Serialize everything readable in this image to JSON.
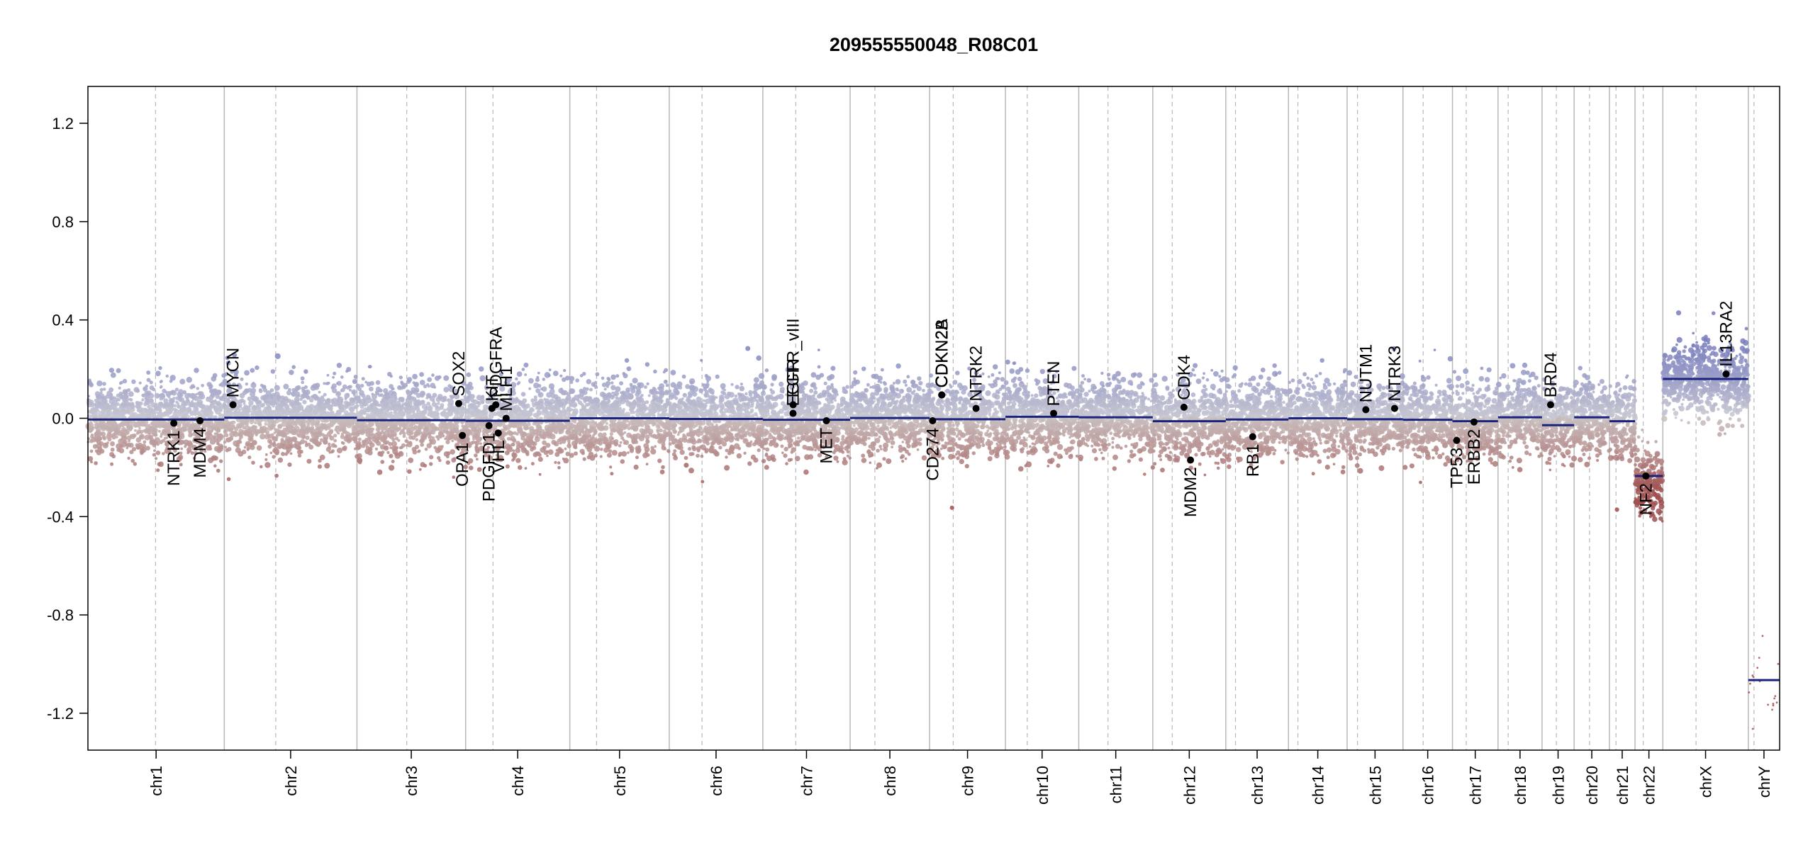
{
  "chart_data": {
    "type": "scatter",
    "title": "209555550048_R08C01",
    "xlabel": "",
    "ylabel": "",
    "ylim": [
      -1.35,
      1.35
    ],
    "y_ticks": [
      "1.2",
      "0.8",
      "0.4",
      "0.0",
      "-0.4",
      "-0.8",
      "-1.2"
    ],
    "chromosomes": [
      {
        "name": "chr1",
        "start": 0,
        "end": 248.9,
        "centromere": 123.4
      },
      {
        "name": "chr2",
        "start": 248.9,
        "end": 491.1,
        "centromere": 93.9
      },
      {
        "name": "chr3",
        "start": 491.1,
        "end": 689.4,
        "centromere": 90.9
      },
      {
        "name": "chr4",
        "start": 689.4,
        "end": 879.6,
        "centromere": 50.0
      },
      {
        "name": "chr5",
        "start": 879.6,
        "end": 1061.1,
        "centromere": 48.8
      },
      {
        "name": "chr6",
        "start": 1061.1,
        "end": 1231.9,
        "centromere": 59.8
      },
      {
        "name": "chr7",
        "start": 1231.9,
        "end": 1391.2,
        "centromere": 60.1
      },
      {
        "name": "chr8",
        "start": 1391.2,
        "end": 1536.3,
        "centromere": 45.2
      },
      {
        "name": "chr9",
        "start": 1536.3,
        "end": 1674.7,
        "centromere": 43.0
      },
      {
        "name": "chr10",
        "start": 1674.7,
        "end": 1808.5,
        "centromere": 39.8
      },
      {
        "name": "chr11",
        "start": 1808.5,
        "end": 1943.6,
        "centromere": 53.4
      },
      {
        "name": "chr12",
        "start": 1943.6,
        "end": 2076.9,
        "centromere": 35.5
      },
      {
        "name": "chr13",
        "start": 2076.9,
        "end": 2191.3,
        "centromere": 17.7
      },
      {
        "name": "chr14",
        "start": 2191.3,
        "end": 2298.3,
        "centromere": 17.2
      },
      {
        "name": "chr15",
        "start": 2298.3,
        "end": 2400.3,
        "centromere": 19.0
      },
      {
        "name": "chr16",
        "start": 2400.3,
        "end": 2490.6,
        "centromere": 36.8
      },
      {
        "name": "chr17",
        "start": 2490.6,
        "end": 2573.8,
        "centromere": 25.1
      },
      {
        "name": "chr18",
        "start": 2573.8,
        "end": 2654.1,
        "centromere": 18.5
      },
      {
        "name": "chr19",
        "start": 2654.1,
        "end": 2712.7,
        "centromere": 26.2
      },
      {
        "name": "chr20",
        "start": 2712.7,
        "end": 2777.1,
        "centromere": 28.1
      },
      {
        "name": "chr21",
        "start": 2777.1,
        "end": 2823.8,
        "centromere": 12.0
      },
      {
        "name": "chr22",
        "start": 2823.8,
        "end": 2874.6,
        "centromere": 15.0
      },
      {
        "name": "chrX",
        "start": 2874.6,
        "end": 3030.6,
        "centromere": 60.6
      },
      {
        "name": "chrY",
        "start": 3030.6,
        "end": 3087.8,
        "centromere": 10.4
      }
    ],
    "segments": [
      {
        "chr": "chr1",
        "x0": 0,
        "x1": 248.9,
        "y": -0.005
      },
      {
        "chr": "chr2",
        "x0": 248.9,
        "x1": 491.1,
        "y": 0.002
      },
      {
        "chr": "chr3",
        "x0": 491.1,
        "x1": 689.4,
        "y": -0.008
      },
      {
        "chr": "chr4",
        "x0": 689.4,
        "x1": 879.6,
        "y": -0.01
      },
      {
        "chr": "chr5",
        "x0": 879.6,
        "x1": 1061.1,
        "y": 0.0
      },
      {
        "chr": "chr6",
        "x0": 1061.1,
        "x1": 1231.9,
        "y": -0.003
      },
      {
        "chr": "chr7",
        "x0": 1231.9,
        "x1": 1391.2,
        "y": -0.006
      },
      {
        "chr": "chr8",
        "x0": 1391.2,
        "x1": 1536.3,
        "y": 0.001
      },
      {
        "chr": "chr9",
        "x0": 1536.3,
        "x1": 1674.7,
        "y": -0.004
      },
      {
        "chr": "chr10",
        "x0": 1674.7,
        "x1": 1808.5,
        "y": 0.006
      },
      {
        "chr": "chr11",
        "x0": 1808.5,
        "x1": 1943.6,
        "y": 0.004
      },
      {
        "chr": "chr12",
        "x0": 1943.6,
        "x1": 2076.9,
        "y": -0.012
      },
      {
        "chr": "chr13",
        "x0": 2076.9,
        "x1": 2191.3,
        "y": -0.005
      },
      {
        "chr": "chr14",
        "x0": 2191.3,
        "x1": 2298.3,
        "y": 0.0
      },
      {
        "chr": "chr15",
        "x0": 2298.3,
        "x1": 2400.3,
        "y": -0.004
      },
      {
        "chr": "chr16",
        "x0": 2400.3,
        "x1": 2490.6,
        "y": -0.006
      },
      {
        "chr": "chr17",
        "x0": 2490.6,
        "x1": 2573.8,
        "y": -0.012
      },
      {
        "chr": "chr18",
        "x0": 2573.8,
        "x1": 2654.1,
        "y": 0.004
      },
      {
        "chr": "chr19",
        "x0": 2654.1,
        "x1": 2712.7,
        "y": -0.028
      },
      {
        "chr": "chr20",
        "x0": 2712.7,
        "x1": 2777.1,
        "y": 0.004
      },
      {
        "chr": "chr21",
        "x0": 2777.1,
        "x1": 2823.8,
        "y": -0.012
      },
      {
        "chr": "chr22",
        "x0": 2823.8,
        "x1": 2874.6,
        "y": -0.235
      },
      {
        "chr": "chrX",
        "x0": 2874.6,
        "x1": 3030.6,
        "y": 0.16
      },
      {
        "chr": "chrY",
        "x0": 3030.6,
        "x1": 3087.8,
        "y": -1.065
      }
    ],
    "genes": [
      {
        "label": "NTRK1",
        "x": 156.8,
        "y": -0.02
      },
      {
        "label": "MDM4",
        "x": 204.5,
        "y": -0.01
      },
      {
        "label": "MYCN",
        "x": 264.8,
        "y": 0.055
      },
      {
        "label": "PDGFD1",
        "x": 732.0,
        "y": -0.03
      },
      {
        "label": "VHL",
        "x": 749.0,
        "y": -0.06
      },
      {
        "label": "MLH1",
        "x": 763.3,
        "y": 0.0
      },
      {
        "label": "SOX2",
        "x": 676.8,
        "y": 0.06
      },
      {
        "label": "OPA1",
        "x": 683.5,
        "y": -0.07
      },
      {
        "label": "PDGFRA",
        "x": 744.5,
        "y": 0.055
      },
      {
        "label": "KIT",
        "x": 737.5,
        "y": 0.04
      },
      {
        "label": "EGFR",
        "x": 1287.0,
        "y": 0.02
      },
      {
        "label": "EGFR_vIII",
        "x": 1287.2,
        "y": 0.055
      },
      {
        "label": "MET",
        "x": 1348.0,
        "y": -0.01
      },
      {
        "label": "CD274",
        "x": 1541.8,
        "y": -0.01
      },
      {
        "label": "CDKN2A",
        "x": 1558.3,
        "y": 0.095
      },
      {
        "label": "CDKN2B",
        "x": 1558.6,
        "y": 0.095
      },
      {
        "label": "NTRK2",
        "x": 1621.0,
        "y": 0.04
      },
      {
        "label": "PTEN",
        "x": 1762.6,
        "y": 0.02
      },
      {
        "label": "CDK4",
        "x": 2000.6,
        "y": 0.045
      },
      {
        "label": "MDM2",
        "x": 2012.5,
        "y": -0.17
      },
      {
        "label": "RB1",
        "x": 2126.0,
        "y": -0.075
      },
      {
        "label": "NUTM1",
        "x": 2332.5,
        "y": 0.035
      },
      {
        "label": "NTRK3",
        "x": 2385.0,
        "y": 0.04
      },
      {
        "label": "TP53",
        "x": 2498.3,
        "y": -0.09
      },
      {
        "label": "ERBB2",
        "x": 2530.0,
        "y": -0.015
      },
      {
        "label": "BRD4",
        "x": 2669.7,
        "y": 0.055
      },
      {
        "label": "NF2",
        "x": 2843.7,
        "y": -0.235
      },
      {
        "label": "IL13RA2",
        "x": 2990.0,
        "y": 0.18
      }
    ],
    "colors": {
      "gain": "#7b7fb8",
      "loss": "#a4504f",
      "neutral": "#c8c8cc",
      "segment": "#1a237e",
      "gene_point": "#000000",
      "chr_line": "#b8b8b8",
      "centromere_line": "#b8b8b8"
    }
  }
}
